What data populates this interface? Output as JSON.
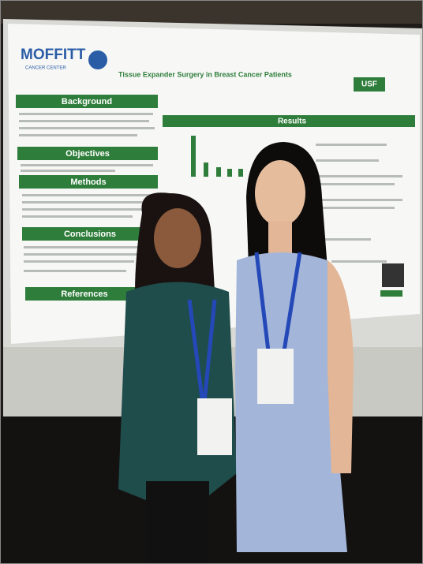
{
  "poster": {
    "logo": "MOFFITT",
    "logo_sub": "CANCER CENTER",
    "title": "Tissue Expander Surgery in Breast Cancer Patients",
    "partner": "USF",
    "sections": [
      "Background",
      "Objectives",
      "Methods",
      "Conclusions",
      "References"
    ],
    "results": "Results"
  }
}
